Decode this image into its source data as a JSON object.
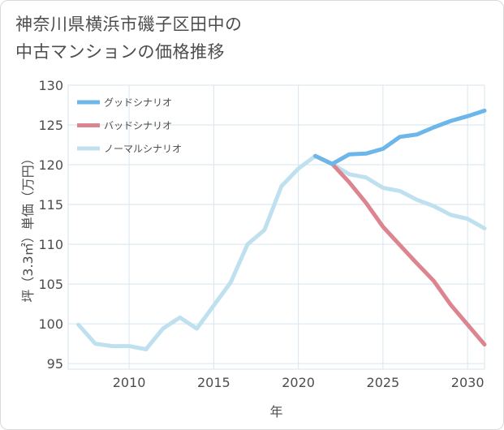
{
  "title_line1": "神奈川県横浜市磯子区田中の",
  "title_line2": "中古マンションの価格推移",
  "chart_data": {
    "type": "line",
    "xlabel": "年",
    "ylabel": "坪（3.3㎡）単価（万円）",
    "xlim": [
      2006.4,
      2031
    ],
    "ylim": [
      94.3,
      130
    ],
    "xticks": [
      2010,
      2015,
      2020,
      2025,
      2030
    ],
    "xtick_labels": [
      "2010",
      "2015",
      "2020",
      "2025",
      "2030"
    ],
    "yticks": [
      95,
      100,
      105,
      110,
      115,
      120,
      125,
      130
    ],
    "ytick_labels": [
      "95",
      "100",
      "105",
      "110",
      "115",
      "120",
      "125",
      "130"
    ],
    "grid": true,
    "legend_position": "top-left",
    "series": [
      {
        "name": "グッドシナリオ",
        "color": "#6cb6ea",
        "x": [
          2021,
          2022,
          2023,
          2024,
          2025,
          2026,
          2027,
          2028,
          2029,
          2030,
          2031
        ],
        "values": [
          121.1,
          120.1,
          121.3,
          121.4,
          122.0,
          123.5,
          123.8,
          124.7,
          125.5,
          126.1,
          126.8
        ]
      },
      {
        "name": "バッドシナリオ",
        "color": "#dc8590",
        "x": [
          2021,
          2022,
          2023,
          2024,
          2025,
          2026,
          2027,
          2028,
          2029,
          2030,
          2031
        ],
        "values": [
          121.1,
          120.1,
          117.8,
          115.2,
          112.2,
          109.9,
          107.6,
          105.4,
          102.4,
          99.9,
          97.4
        ]
      },
      {
        "name": "ノーマルシナリオ",
        "color": "#bfe0ef",
        "x": [
          2007,
          2008,
          2009,
          2010,
          2011,
          2012,
          2013,
          2014,
          2015,
          2016,
          2017,
          2018,
          2019,
          2020,
          2021,
          2022,
          2023,
          2024,
          2025,
          2026,
          2027,
          2028,
          2029,
          2030,
          2031
        ],
        "values": [
          99.9,
          97.5,
          97.2,
          97.2,
          96.8,
          99.4,
          100.8,
          99.4,
          102.3,
          105.2,
          110.0,
          111.8,
          117.3,
          119.5,
          121.1,
          120.1,
          118.8,
          118.4,
          117.1,
          116.7,
          115.6,
          114.8,
          113.7,
          113.2,
          112.0
        ]
      }
    ]
  }
}
